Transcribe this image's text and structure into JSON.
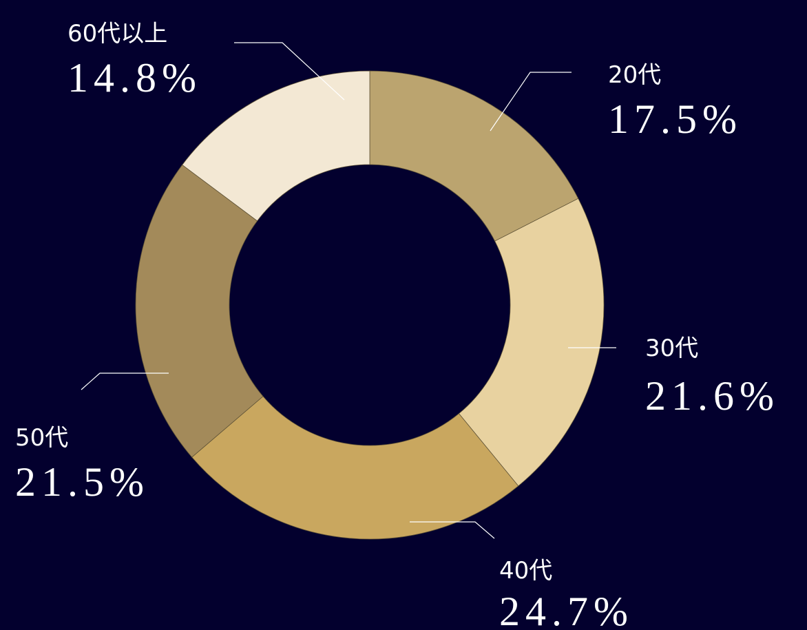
{
  "chart_data": {
    "type": "donut",
    "categories": [
      "20代",
      "30代",
      "40代",
      "50代",
      "60代以上"
    ],
    "values": [
      17.5,
      21.6,
      24.7,
      21.5,
      14.8
    ],
    "value_labels": [
      "17.5%",
      "21.6%",
      "24.7%",
      "21.5%",
      "14.8%"
    ],
    "colors": [
      "#bba46f",
      "#e8d2a0",
      "#c9a75f",
      "#a38a5a",
      "#f3e8d4"
    ]
  }
}
